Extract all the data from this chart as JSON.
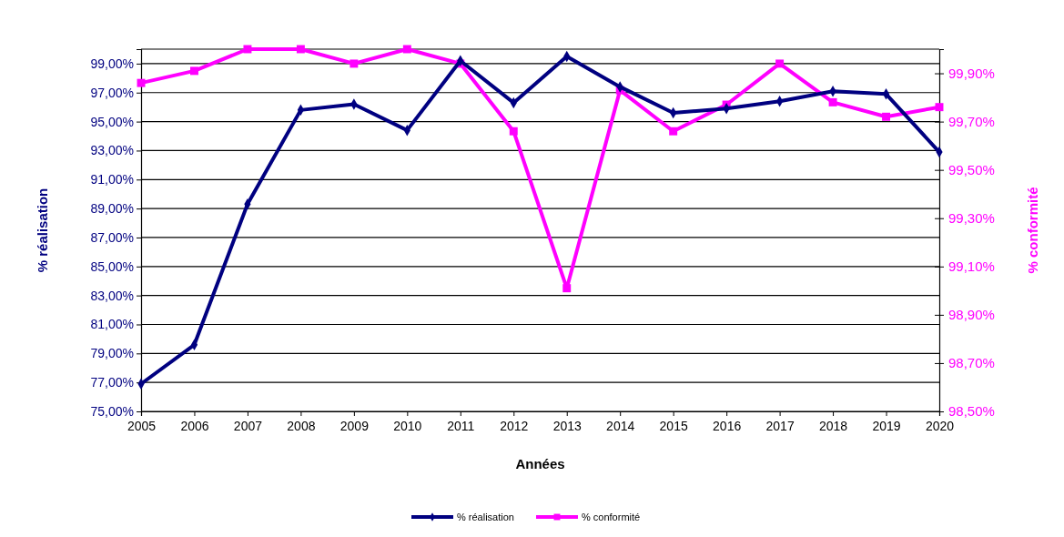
{
  "chart_data": {
    "type": "line",
    "xlabel": "Années",
    "ylabel": "% réalisation",
    "y2label": "% conformité",
    "x": [
      2005,
      2006,
      2007,
      2008,
      2009,
      2010,
      2011,
      2012,
      2013,
      2014,
      2015,
      2016,
      2017,
      2018,
      2019,
      2020
    ],
    "xlim": [
      2005,
      2020
    ],
    "xticks": [
      2005,
      2006,
      2007,
      2008,
      2009,
      2010,
      2011,
      2012,
      2013,
      2014,
      2015,
      2016,
      2017,
      2018,
      2019,
      2020
    ],
    "ylim": [
      75,
      100
    ],
    "yticks": [
      {
        "value": 75,
        "label": "75,00%"
      },
      {
        "value": 77,
        "label": "77,00%"
      },
      {
        "value": 79,
        "label": "79,00%"
      },
      {
        "value": 81,
        "label": "81,00%"
      },
      {
        "value": 83,
        "label": "83,00%"
      },
      {
        "value": 85,
        "label": "85,00%"
      },
      {
        "value": 87,
        "label": "87,00%"
      },
      {
        "value": 89,
        "label": "89,00%"
      },
      {
        "value": 91,
        "label": "91,00%"
      },
      {
        "value": 93,
        "label": "93,00%"
      },
      {
        "value": 95,
        "label": "95,00%"
      },
      {
        "value": 97,
        "label": "97,00%"
      },
      {
        "value": 99,
        "label": "99,00%"
      }
    ],
    "y2lim": [
      98.5,
      100
    ],
    "y2ticks": [
      {
        "value": 98.5,
        "label": "98,50%"
      },
      {
        "value": 98.7,
        "label": "98,70%"
      },
      {
        "value": 98.9,
        "label": "98,90%"
      },
      {
        "value": 99.1,
        "label": "99,10%"
      },
      {
        "value": 99.3,
        "label": "99,30%"
      },
      {
        "value": 99.5,
        "label": "99,50%"
      },
      {
        "value": 99.7,
        "label": "99,70%"
      },
      {
        "value": 99.9,
        "label": "99,90%"
      }
    ],
    "grid": "y",
    "legend": "bottom",
    "line_style": "solid",
    "series": [
      {
        "name": "% réalisation",
        "color": "#000080",
        "marker": "diamond",
        "values": [
          76.9,
          79.6,
          89.3,
          95.8,
          96.2,
          94.4,
          99.2,
          96.3,
          99.5,
          97.4,
          95.6,
          95.9,
          96.4,
          97.1,
          96.9,
          92.9
        ]
      },
      {
        "name": "% conformité",
        "color": "#ff00ff",
        "marker": "square",
        "axis": "y2",
        "values": [
          99.86,
          99.91,
          100.0,
          100.0,
          99.94,
          100.0,
          99.94,
          99.66,
          99.01,
          99.83,
          99.66,
          99.77,
          99.94,
          99.78,
          99.72,
          99.76
        ]
      }
    ]
  }
}
